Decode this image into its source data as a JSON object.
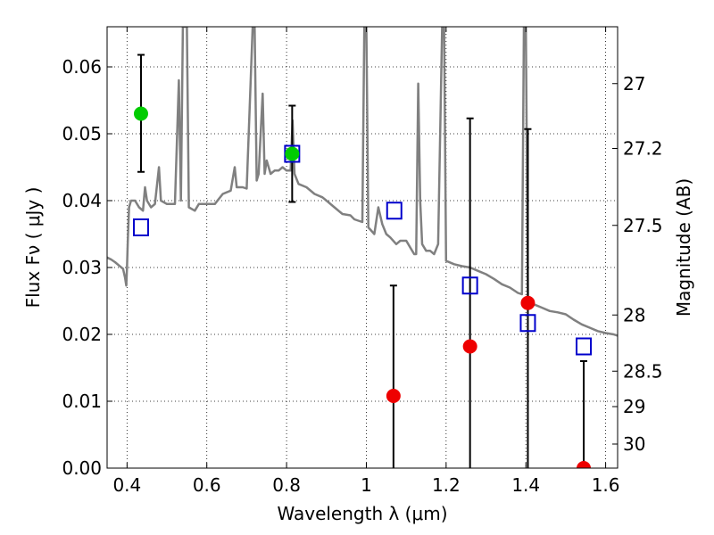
{
  "chart_data": {
    "type": "scatter",
    "xlabel": "Wavelength  λ (μm)",
    "ylabel": "Flux  Fν  ( μJy )",
    "y2label": "Magnitude (AB)",
    "xlim": [
      0.35,
      1.63
    ],
    "ylim": [
      0.0,
      0.066
    ],
    "x_ticks": [
      0.4,
      0.6,
      0.8,
      1.0,
      1.2,
      1.4,
      1.6
    ],
    "x_tick_labels": [
      "0.4",
      "0.6",
      "0.8",
      "1",
      "1.2",
      "1.4",
      "1.6"
    ],
    "y_ticks": [
      0.0,
      0.01,
      0.02,
      0.03,
      0.04,
      0.05,
      0.06
    ],
    "y_tick_labels": [
      "0.00",
      "0.01",
      "0.02",
      "0.03",
      "0.04",
      "0.05",
      "0.06"
    ],
    "y2_ticks": [
      {
        "label": "27",
        "flux": 0.0575
      },
      {
        "label": "27.2",
        "flux": 0.0478
      },
      {
        "label": "27.5",
        "flux": 0.0363
      },
      {
        "label": "28",
        "flux": 0.0229
      },
      {
        "label": "28.5",
        "flux": 0.0145
      },
      {
        "label": "29",
        "flux": 0.0092
      },
      {
        "label": "30",
        "flux": 0.0036
      }
    ],
    "grid": true,
    "colors": {
      "model": "#808080",
      "detection": "#00cc00",
      "nondetection": "#ee0000",
      "model_photometry": "#0000cc",
      "errorbar": "#000000"
    },
    "model_spectrum": [
      [
        0.35,
        0.0315
      ],
      [
        0.36,
        0.0312
      ],
      [
        0.37,
        0.0308
      ],
      [
        0.38,
        0.0303
      ],
      [
        0.39,
        0.0298
      ],
      [
        0.395,
        0.0285
      ],
      [
        0.398,
        0.0273
      ],
      [
        0.4,
        0.03
      ],
      [
        0.402,
        0.034
      ],
      [
        0.405,
        0.039
      ],
      [
        0.41,
        0.04
      ],
      [
        0.42,
        0.04
      ],
      [
        0.43,
        0.039
      ],
      [
        0.44,
        0.0385
      ],
      [
        0.445,
        0.042
      ],
      [
        0.45,
        0.04
      ],
      [
        0.46,
        0.039
      ],
      [
        0.47,
        0.0395
      ],
      [
        0.48,
        0.045
      ],
      [
        0.485,
        0.04
      ],
      [
        0.5,
        0.0395
      ],
      [
        0.51,
        0.0395
      ],
      [
        0.52,
        0.0395
      ],
      [
        0.53,
        0.058
      ],
      [
        0.535,
        0.04
      ],
      [
        0.54,
        0.066
      ],
      [
        0.545,
        0.066
      ],
      [
        0.55,
        0.066
      ],
      [
        0.555,
        0.039
      ],
      [
        0.57,
        0.0385
      ],
      [
        0.58,
        0.0395
      ],
      [
        0.6,
        0.0395
      ],
      [
        0.62,
        0.0395
      ],
      [
        0.64,
        0.041
      ],
      [
        0.66,
        0.0415
      ],
      [
        0.67,
        0.045
      ],
      [
        0.675,
        0.042
      ],
      [
        0.69,
        0.042
      ],
      [
        0.7,
        0.0418
      ],
      [
        0.715,
        0.066
      ],
      [
        0.72,
        0.066
      ],
      [
        0.725,
        0.043
      ],
      [
        0.73,
        0.044
      ],
      [
        0.74,
        0.056
      ],
      [
        0.745,
        0.044
      ],
      [
        0.75,
        0.046
      ],
      [
        0.76,
        0.044
      ],
      [
        0.77,
        0.0445
      ],
      [
        0.78,
        0.0445
      ],
      [
        0.79,
        0.045
      ],
      [
        0.8,
        0.0445
      ],
      [
        0.81,
        0.0445
      ],
      [
        0.815,
        0.052
      ],
      [
        0.82,
        0.044
      ],
      [
        0.83,
        0.0425
      ],
      [
        0.85,
        0.042
      ],
      [
        0.87,
        0.041
      ],
      [
        0.89,
        0.0405
      ],
      [
        0.9,
        0.04
      ],
      [
        0.92,
        0.039
      ],
      [
        0.94,
        0.038
      ],
      [
        0.96,
        0.0378
      ],
      [
        0.97,
        0.0372
      ],
      [
        0.98,
        0.037
      ],
      [
        0.99,
        0.0368
      ],
      [
        0.995,
        0.066
      ],
      [
        1.0,
        0.066
      ],
      [
        1.005,
        0.036
      ],
      [
        1.02,
        0.035
      ],
      [
        1.03,
        0.039
      ],
      [
        1.04,
        0.0365
      ],
      [
        1.05,
        0.035
      ],
      [
        1.06,
        0.0345
      ],
      [
        1.075,
        0.0335
      ],
      [
        1.085,
        0.034
      ],
      [
        1.1,
        0.034
      ],
      [
        1.11,
        0.033
      ],
      [
        1.12,
        0.032
      ],
      [
        1.125,
        0.032
      ],
      [
        1.13,
        0.0575
      ],
      [
        1.135,
        0.04
      ],
      [
        1.14,
        0.0335
      ],
      [
        1.15,
        0.0325
      ],
      [
        1.16,
        0.0325
      ],
      [
        1.17,
        0.032
      ],
      [
        1.18,
        0.0335
      ],
      [
        1.19,
        0.066
      ],
      [
        1.195,
        0.066
      ],
      [
        1.2,
        0.031
      ],
      [
        1.22,
        0.0305
      ],
      [
        1.24,
        0.0302
      ],
      [
        1.26,
        0.03
      ],
      [
        1.28,
        0.0295
      ],
      [
        1.3,
        0.029
      ],
      [
        1.32,
        0.0283
      ],
      [
        1.34,
        0.0275
      ],
      [
        1.36,
        0.027
      ],
      [
        1.38,
        0.0262
      ],
      [
        1.39,
        0.026
      ],
      [
        1.395,
        0.066
      ],
      [
        1.4,
        0.066
      ],
      [
        1.405,
        0.0255
      ],
      [
        1.42,
        0.0245
      ],
      [
        1.44,
        0.024
      ],
      [
        1.46,
        0.0235
      ],
      [
        1.48,
        0.0233
      ],
      [
        1.5,
        0.023
      ],
      [
        1.52,
        0.0222
      ],
      [
        1.54,
        0.0215
      ],
      [
        1.56,
        0.021
      ],
      [
        1.58,
        0.0205
      ],
      [
        1.6,
        0.0202
      ],
      [
        1.62,
        0.02
      ],
      [
        1.63,
        0.0198
      ]
    ],
    "detections": [
      {
        "x": 0.435,
        "y": 0.053,
        "err_low": 0.0443,
        "err_high": 0.0618
      },
      {
        "x": 0.814,
        "y": 0.047,
        "err_low": 0.0398,
        "err_high": 0.0542
      }
    ],
    "nondetections": [
      {
        "x": 1.068,
        "y": 0.0108,
        "err_low": 0.0,
        "err_high": 0.0273
      },
      {
        "x": 1.26,
        "y": 0.0182,
        "err_low": 0.0,
        "err_high": 0.0523
      },
      {
        "x": 1.405,
        "y": 0.0247,
        "err_low": 0.0,
        "err_high": 0.0507
      },
      {
        "x": 1.545,
        "y": 0.0,
        "err_low": 0.0,
        "err_high": 0.016
      }
    ],
    "model_photometry": [
      {
        "x": 0.435,
        "y": 0.036
      },
      {
        "x": 0.814,
        "y": 0.047
      },
      {
        "x": 1.07,
        "y": 0.0385
      },
      {
        "x": 1.26,
        "y": 0.0273
      },
      {
        "x": 1.405,
        "y": 0.0217
      },
      {
        "x": 1.545,
        "y": 0.0182
      }
    ]
  }
}
